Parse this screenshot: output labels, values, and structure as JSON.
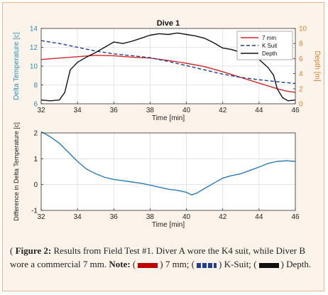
{
  "chart_data": [
    {
      "type": "line",
      "title": "Dive 1",
      "xlabel": "Time [min]",
      "ylabel": "Delta Temperature [c]",
      "y2label": "Depth [m]",
      "xlim": [
        32,
        46
      ],
      "ylim": [
        6,
        14
      ],
      "y2lim": [
        0,
        10
      ],
      "xticks": [
        32,
        34,
        36,
        38,
        40,
        42,
        44,
        46
      ],
      "yticks": [
        6,
        8,
        10,
        12,
        14
      ],
      "y2ticks": [
        0,
        2,
        4,
        6,
        8,
        10
      ],
      "grid": true,
      "legend_position": "top-right",
      "series": [
        {
          "name": "7 mm",
          "color": "#d62728",
          "style": "solid",
          "axis": "left",
          "x": [
            32,
            33,
            34,
            35,
            36,
            37,
            38,
            39,
            40,
            41,
            42,
            43,
            44,
            45,
            45.5,
            46
          ],
          "y": [
            10.7,
            10.85,
            11.0,
            11.15,
            11.1,
            10.95,
            10.85,
            10.6,
            10.3,
            9.95,
            9.4,
            8.8,
            8.2,
            7.6,
            7.35,
            7.2
          ]
        },
        {
          "name": "K Suit",
          "color": "#1f3d99",
          "style": "dashed",
          "axis": "left",
          "x": [
            32,
            33,
            34,
            35,
            36,
            37,
            38,
            39,
            40,
            41,
            42,
            43,
            44,
            45,
            46
          ],
          "y": [
            12.7,
            12.4,
            12.0,
            11.6,
            11.3,
            11.1,
            10.9,
            10.5,
            10.05,
            9.6,
            9.15,
            8.8,
            8.55,
            8.35,
            8.15
          ]
        },
        {
          "name": "Depth",
          "color": "#111111",
          "style": "solid",
          "axis": "right",
          "x": [
            32,
            32.5,
            33,
            33.3,
            33.6,
            34,
            34.5,
            35,
            35.5,
            36,
            36.5,
            37,
            37.5,
            38,
            38.5,
            39,
            39.5,
            40,
            40.5,
            41,
            41.5,
            42,
            42.5,
            43,
            43.5,
            44,
            44.5,
            44.8,
            45,
            45.3,
            45.6,
            46
          ],
          "y": [
            0.5,
            0.4,
            0.5,
            1.5,
            4.5,
            5.5,
            6.2,
            6.8,
            7.5,
            8.2,
            8.0,
            8.3,
            8.7,
            9.1,
            9.3,
            9.2,
            9.4,
            9.2,
            9.0,
            8.7,
            8.1,
            7.4,
            7.2,
            6.8,
            6.5,
            5.9,
            4.8,
            3.8,
            2.0,
            0.8,
            0.4,
            0.5
          ]
        }
      ]
    },
    {
      "type": "line",
      "title": "",
      "xlabel": "Time [min]",
      "ylabel": "Difference in Delta Temperature [c]",
      "xlim": [
        32,
        46
      ],
      "ylim": [
        -1,
        2
      ],
      "xticks": [
        32,
        34,
        36,
        38,
        40,
        42,
        44,
        46
      ],
      "yticks": [
        -1,
        0,
        1,
        2
      ],
      "grid": true,
      "series": [
        {
          "name": "",
          "color": "#2b7bb9",
          "style": "solid",
          "x": [
            32,
            32.5,
            33,
            33.5,
            34,
            34.5,
            35,
            35.5,
            36,
            36.5,
            37,
            37.5,
            38,
            38.5,
            39,
            39.5,
            40,
            40.3,
            40.6,
            41,
            41.5,
            42,
            42.5,
            43,
            43.5,
            44,
            44.5,
            45,
            45.5,
            46
          ],
          "y": [
            2.05,
            1.85,
            1.6,
            1.25,
            0.9,
            0.6,
            0.42,
            0.28,
            0.2,
            0.15,
            0.1,
            0.05,
            -0.02,
            -0.1,
            -0.18,
            -0.22,
            -0.3,
            -0.4,
            -0.32,
            -0.15,
            0.05,
            0.25,
            0.35,
            0.42,
            0.55,
            0.68,
            0.82,
            0.9,
            0.92,
            0.9
          ]
        }
      ]
    }
  ],
  "caption": {
    "label": "Figure 2:",
    "text": " Results from Field Test #1. Diver A wore the K4 suit, while Diver B wore a commercial 7 mm.",
    "note_label": "Note:",
    "item1": "7 mm;",
    "item2": "K-Suit;",
    "item3": "Depth."
  }
}
